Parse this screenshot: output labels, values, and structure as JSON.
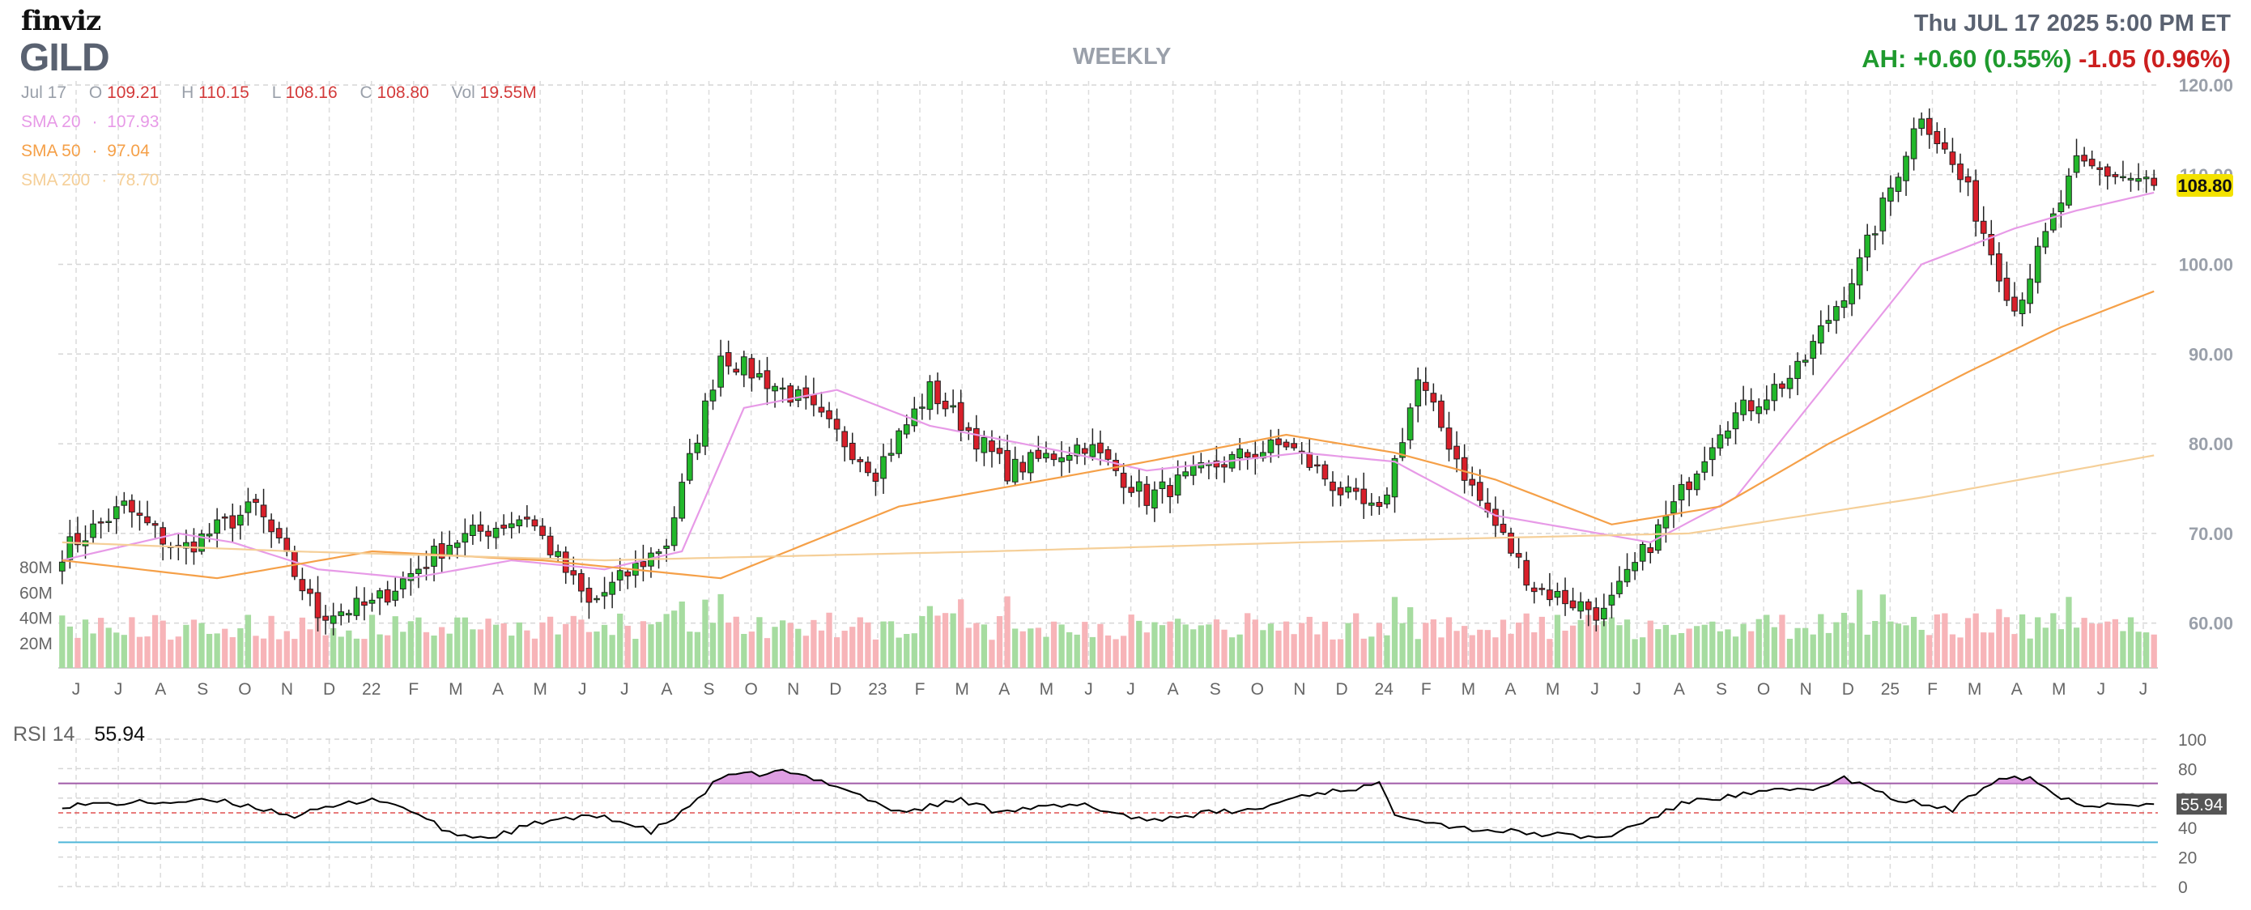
{
  "header": {
    "logo": "finviz",
    "ticker": "GILD",
    "timeframe": "WEEKLY",
    "timestamp": "Thu JUL 17 2025 5:00 PM ET",
    "after_hours": "AH: +0.60 (0.55%)",
    "change": "-1.05 (0.96%)"
  },
  "ohlc": {
    "date": "Jul 17",
    "open_label": "O",
    "open": "109.21",
    "high_label": "H",
    "high": "110.15",
    "low_label": "L",
    "low": "108.16",
    "close_label": "C",
    "close": "108.80",
    "vol_label": "Vol",
    "volume": "19.55M"
  },
  "sma": [
    {
      "label": "SMA 20",
      "value": "107.93",
      "color": "#e79ae7"
    },
    {
      "label": "SMA 50",
      "value": "97.04",
      "color": "#f5a048"
    },
    {
      "label": "SMA 200",
      "value": "78.70",
      "color": "#f5cf98"
    }
  ],
  "rsi": {
    "label": "RSI 14",
    "value": "55.94"
  },
  "colors": {
    "up": "#22b82b",
    "down": "#d81f2a",
    "vol_up": "#a6dca0",
    "vol_down": "#f7b4b8",
    "rsi_line": "#000000",
    "rsi_fill": "#d88ddd",
    "overbought": "#a05ba8",
    "oversold": "#4fb7d9",
    "price_tag": "#f3e200"
  },
  "chart_data": [
    {
      "type": "candlestick",
      "title": "GILD weekly price",
      "ylim": [
        55,
        120
      ],
      "y_ticks": [
        "120.00",
        "110.00",
        "100.00",
        "90.00",
        "80.00",
        "70.00",
        "60.00"
      ],
      "x_ticks": [
        "J",
        "J",
        "A",
        "S",
        "O",
        "N",
        "D",
        "22",
        "F",
        "M",
        "A",
        "M",
        "J",
        "J",
        "A",
        "S",
        "O",
        "N",
        "D",
        "23",
        "F",
        "M",
        "A",
        "M",
        "J",
        "J",
        "A",
        "S",
        "O",
        "N",
        "D",
        "24",
        "F",
        "M",
        "A",
        "M",
        "J",
        "J",
        "A",
        "S",
        "O",
        "N",
        "D",
        "25",
        "F",
        "M",
        "A",
        "M",
        "J",
        "J"
      ],
      "last_price": "108.80",
      "anchors": [
        [
          0,
          68
        ],
        [
          8,
          73
        ],
        [
          15,
          68
        ],
        [
          25,
          73
        ],
        [
          33,
          61
        ],
        [
          40,
          62
        ],
        [
          50,
          69
        ],
        [
          60,
          72
        ],
        [
          68,
          62
        ],
        [
          78,
          69
        ],
        [
          85,
          90
        ],
        [
          95,
          85
        ],
        [
          105,
          77
        ],
        [
          112,
          86
        ],
        [
          122,
          77
        ],
        [
          132,
          80
        ],
        [
          140,
          74
        ],
        [
          150,
          78
        ],
        [
          158,
          80
        ],
        [
          166,
          74
        ],
        [
          170,
          72
        ],
        [
          175,
          87
        ],
        [
          182,
          75
        ],
        [
          190,
          64
        ],
        [
          199,
          61
        ],
        [
          208,
          73
        ],
        [
          214,
          82
        ],
        [
          224,
          88
        ],
        [
          232,
          100
        ],
        [
          240,
          117
        ],
        [
          246,
          108
        ],
        [
          252,
          95
        ],
        [
          260,
          111
        ],
        [
          270,
          109
        ]
      ],
      "sma_series": [
        {
          "name": "SMA 20",
          "anchors": [
            [
              0,
              67
            ],
            [
              15,
              70
            ],
            [
              22,
              69
            ],
            [
              33,
              66
            ],
            [
              45,
              65
            ],
            [
              58,
              67
            ],
            [
              70,
              66
            ],
            [
              80,
              68
            ],
            [
              88,
              84
            ],
            [
              100,
              86
            ],
            [
              112,
              82
            ],
            [
              130,
              79
            ],
            [
              140,
              77
            ],
            [
              160,
              79
            ],
            [
              172,
              78
            ],
            [
              185,
              72
            ],
            [
              205,
              69
            ],
            [
              216,
              74
            ],
            [
              228,
              87
            ],
            [
              240,
              100
            ],
            [
              252,
              104
            ],
            [
              260,
              106
            ],
            [
              270,
              108
            ]
          ]
        },
        {
          "name": "SMA 50",
          "anchors": [
            [
              0,
              67
            ],
            [
              20,
              65
            ],
            [
              40,
              68
            ],
            [
              62,
              67
            ],
            [
              85,
              65
            ],
            [
              108,
              73
            ],
            [
              140,
              78
            ],
            [
              158,
              81
            ],
            [
              172,
              79
            ],
            [
              185,
              76
            ],
            [
              200,
              71
            ],
            [
              214,
              73
            ],
            [
              228,
              80
            ],
            [
              246,
              88
            ],
            [
              258,
              93
            ],
            [
              270,
              97
            ]
          ]
        },
        {
          "name": "SMA 200",
          "anchors": [
            [
              0,
              69
            ],
            [
              30,
              68
            ],
            [
              70,
              67
            ],
            [
              120,
              68
            ],
            [
              160,
              69
            ],
            [
              210,
              70
            ],
            [
              240,
              74
            ],
            [
              270,
              78.7
            ]
          ]
        }
      ]
    },
    {
      "type": "bar",
      "title": "Volume",
      "y_ticks": [
        "80M",
        "60M",
        "40M",
        "20M"
      ],
      "ylim": [
        0,
        80
      ]
    },
    {
      "type": "line",
      "title": "RSI 14",
      "ylim": [
        0,
        100
      ],
      "y_ticks": [
        "100",
        "80",
        "60",
        "40",
        "20",
        "0"
      ],
      "overbought": 70,
      "oversold": 30,
      "last": "55.94",
      "anchors": [
        [
          0,
          55
        ],
        [
          10,
          57
        ],
        [
          20,
          58
        ],
        [
          25,
          54
        ],
        [
          30,
          48
        ],
        [
          40,
          60
        ],
        [
          45,
          52
        ],
        [
          50,
          36
        ],
        [
          55,
          33
        ],
        [
          62,
          44
        ],
        [
          70,
          48
        ],
        [
          76,
          37
        ],
        [
          80,
          50
        ],
        [
          85,
          74
        ],
        [
          93,
          78
        ],
        [
          100,
          69
        ],
        [
          108,
          50
        ],
        [
          116,
          59
        ],
        [
          120,
          52
        ],
        [
          132,
          55
        ],
        [
          140,
          45
        ],
        [
          148,
          50
        ],
        [
          154,
          52
        ],
        [
          160,
          62
        ],
        [
          170,
          69
        ],
        [
          172,
          50
        ],
        [
          180,
          40
        ],
        [
          190,
          36
        ],
        [
          199,
          33
        ],
        [
          205,
          46
        ],
        [
          210,
          58
        ],
        [
          220,
          64
        ],
        [
          228,
          68
        ],
        [
          230,
          74
        ],
        [
          236,
          60
        ],
        [
          244,
          52
        ],
        [
          250,
          75
        ],
        [
          254,
          74
        ],
        [
          258,
          60
        ],
        [
          262,
          55
        ],
        [
          266,
          57
        ],
        [
          270,
          55.94
        ]
      ]
    }
  ]
}
